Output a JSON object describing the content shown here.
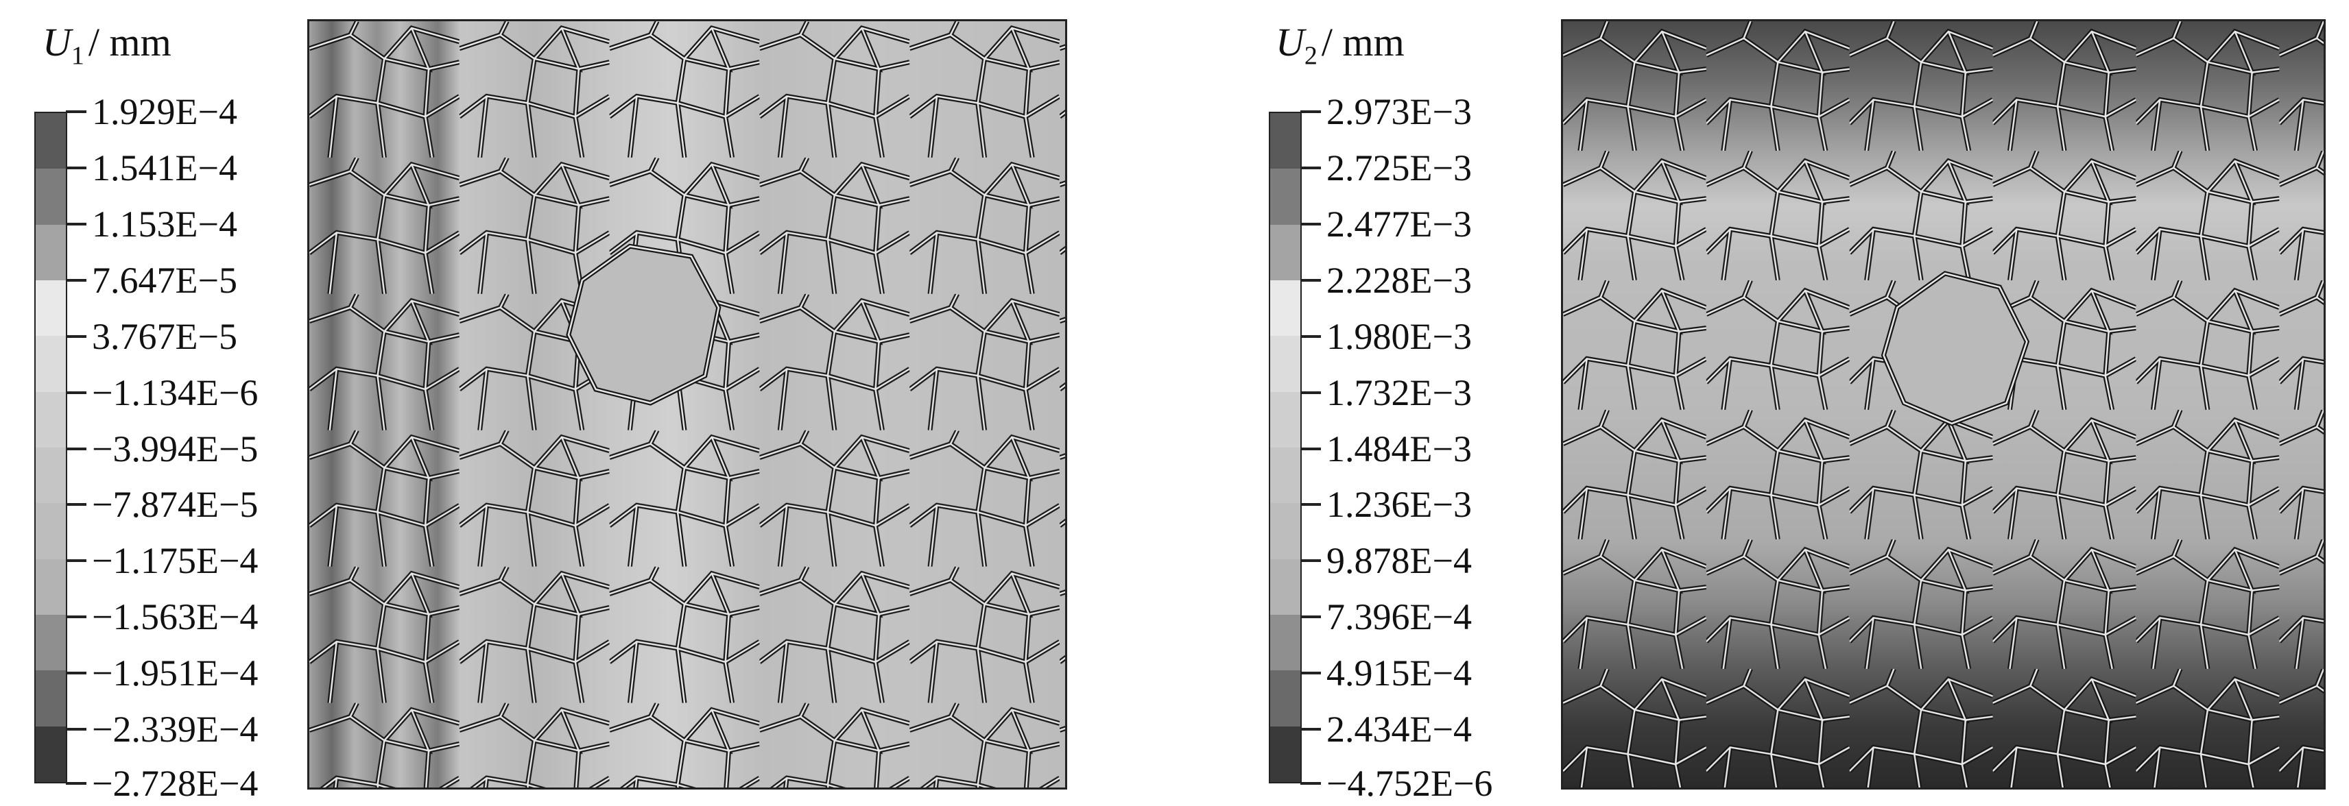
{
  "panels": [
    {
      "title": {
        "symbol": "U",
        "subscript": "1",
        "unit": "/ mm"
      },
      "legend": {
        "labels": [
          "1.929E−4",
          "1.541E−4",
          "1.153E−4",
          "7.647E−5",
          "3.767E−5",
          "−1.134E−6",
          "−3.994E−5",
          "−7.874E−5",
          "−1.175E−4",
          "−1.563E−4",
          "−1.951E−4",
          "−2.339E−4",
          "−2.728E−4"
        ],
        "colors": [
          "#5a5a5a",
          "#7d7d7d",
          "#a4a4a4",
          "#e9e9e9",
          "#dcdcdc",
          "#cfcfcf",
          "#c5c5c5",
          "#bdbdbd",
          "#b3b3b3",
          "#8f8f8f",
          "#6a6a6a",
          "#3a3a3a"
        ]
      }
    },
    {
      "title": {
        "symbol": "U",
        "subscript": "2",
        "unit": "/ mm"
      },
      "legend": {
        "labels": [
          "2.973E−3",
          "2.725E−3",
          "2.477E−3",
          "2.228E−3",
          "1.980E−3",
          "1.732E−3",
          "1.484E−3",
          "1.236E−3",
          "9.878E−4",
          "7.396E−4",
          "4.915E−4",
          "2.434E−4",
          "−4.752E−6"
        ],
        "colors": [
          "#5a5a5a",
          "#7d7d7d",
          "#a4a4a4",
          "#e9e9e9",
          "#dcdcdc",
          "#cfcfcf",
          "#c5c5c5",
          "#bdbdbd",
          "#b3b3b3",
          "#8f8f8f",
          "#6a6a6a",
          "#3a3a3a"
        ]
      }
    }
  ]
}
